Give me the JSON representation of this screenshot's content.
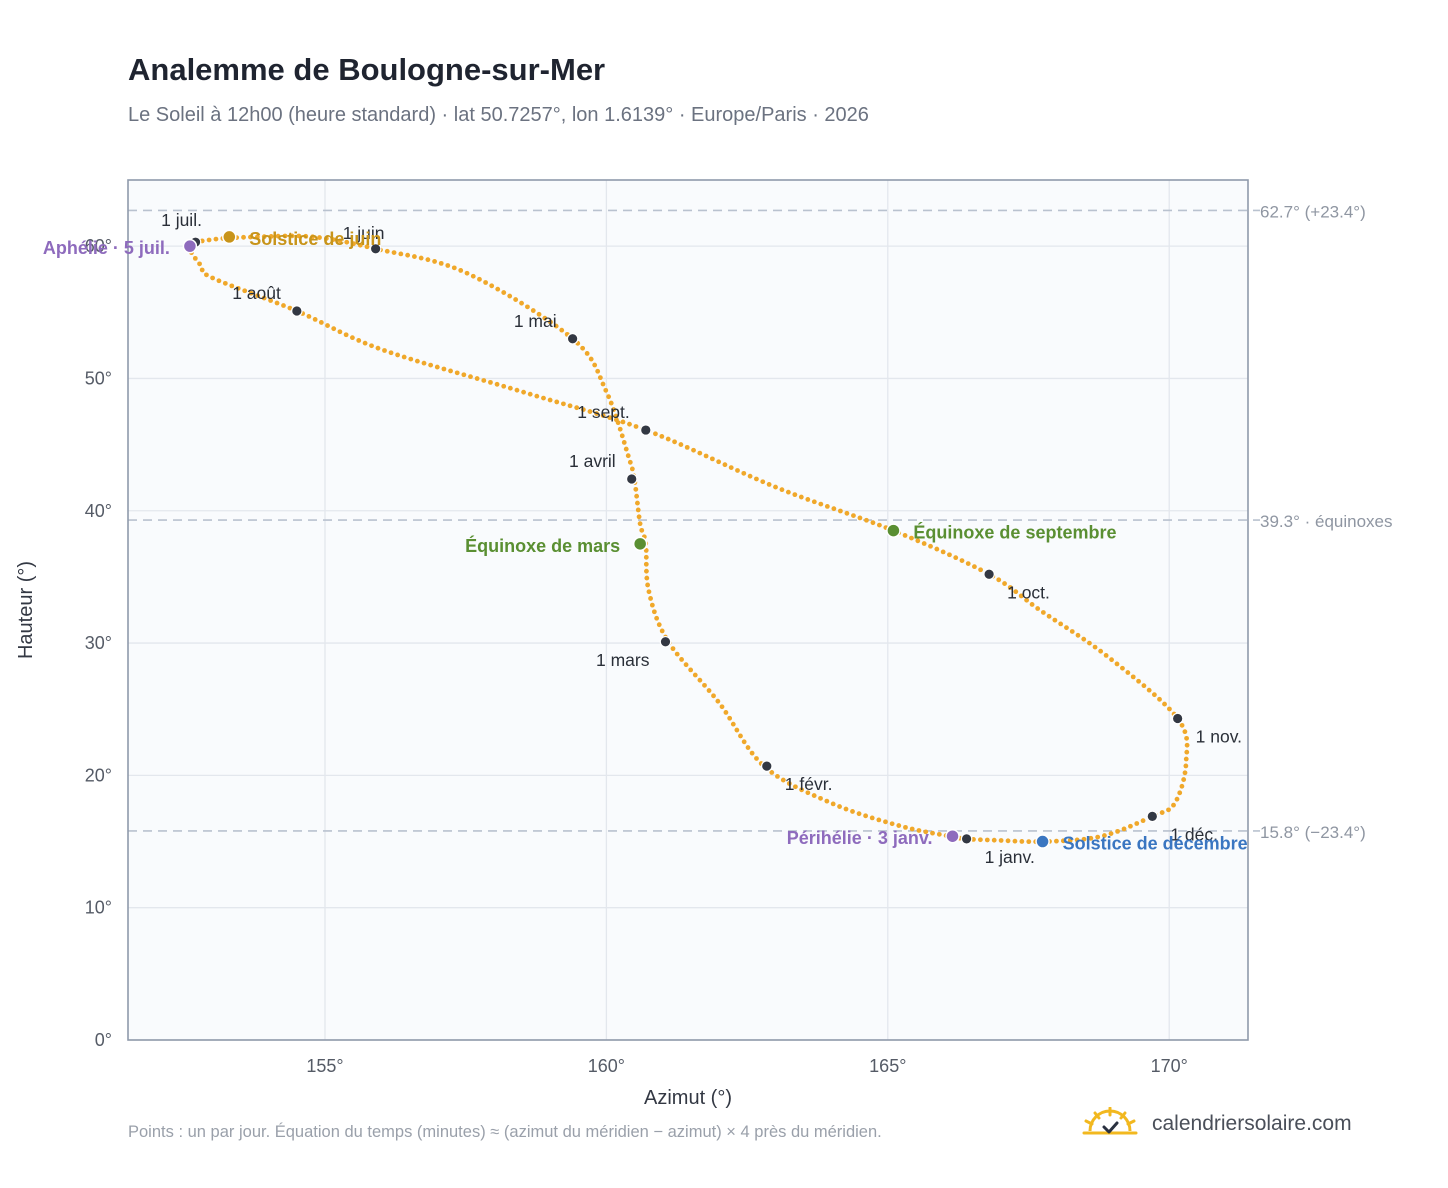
{
  "title": "Analemme de Boulogne-sur-Mer",
  "subtitle": "Le Soleil à 12h00 (heure standard) · lat 50.7257°, lon 1.6139° · Europe/Paris · 2026",
  "footnote": "Points : un par jour. Équation du temps (minutes) ≈ (azimut du méridien − azimut) × 4 près du méridien.",
  "brand": {
    "name": "calendriersolaire.com",
    "icon": "sun-check-icon"
  },
  "chart_data": {
    "type": "scatter",
    "xlabel": "Azimut (°)",
    "ylabel": "Hauteur (°)",
    "xlim": [
      151.5,
      171.4
    ],
    "ylim": [
      0,
      65
    ],
    "xticks": [
      155,
      160,
      165,
      170
    ],
    "xtick_labels": [
      "155°",
      "160°",
      "165°",
      "170°"
    ],
    "yticks": [
      0,
      10,
      20,
      30,
      40,
      50,
      60
    ],
    "ytick_labels": [
      "0°",
      "10°",
      "20°",
      "30°",
      "40°",
      "50°",
      "60°"
    ],
    "grid": true,
    "reference_lines": [
      {
        "y": 62.7,
        "label": "62.7° (+23.4°)"
      },
      {
        "y": 39.3,
        "label": "39.3° · équinoxes"
      },
      {
        "y": 15.8,
        "label": "15.8° (−23.4°)"
      }
    ],
    "daily_path": [
      [
        166.4,
        15.2
      ],
      [
        166.9,
        15.1
      ],
      [
        167.8,
        15.0
      ],
      [
        168.8,
        15.4
      ],
      [
        169.7,
        16.9
      ],
      [
        170.1,
        17.9
      ],
      [
        170.3,
        21.0
      ],
      [
        170.15,
        24.3
      ],
      [
        168.9,
        29.0
      ],
      [
        167.7,
        32.5
      ],
      [
        166.8,
        35.2
      ],
      [
        165.1,
        38.5
      ],
      [
        163.0,
        41.8
      ],
      [
        160.7,
        46.1
      ],
      [
        158.5,
        49.0
      ],
      [
        156.0,
        52.2
      ],
      [
        154.5,
        55.1
      ],
      [
        153.0,
        57.6
      ],
      [
        152.8,
        58.5
      ],
      [
        152.6,
        60.0
      ],
      [
        153.0,
        60.5
      ],
      [
        153.8,
        60.7
      ],
      [
        154.8,
        60.7
      ],
      [
        155.9,
        59.8
      ],
      [
        157.5,
        58.0
      ],
      [
        159.4,
        53.0
      ],
      [
        160.0,
        49.0
      ],
      [
        160.4,
        44.0
      ],
      [
        160.5,
        42.3
      ],
      [
        160.6,
        39.0
      ],
      [
        160.7,
        37.5
      ],
      [
        160.75,
        34.0
      ],
      [
        161.1,
        30.1
      ],
      [
        162.0,
        25.5
      ],
      [
        162.8,
        20.7
      ],
      [
        164.0,
        17.9
      ],
      [
        165.2,
        16.2
      ],
      [
        166.1,
        15.4
      ],
      [
        166.4,
        15.2
      ]
    ],
    "month_markers": [
      {
        "label": "1 janv.",
        "x": 166.4,
        "y": 15.2
      },
      {
        "label": "1 févr.",
        "x": 162.85,
        "y": 20.7
      },
      {
        "label": "1 mars",
        "x": 161.05,
        "y": 30.1
      },
      {
        "label": "1 avril",
        "x": 160.45,
        "y": 42.4
      },
      {
        "label": "1 mai",
        "x": 159.4,
        "y": 53.0
      },
      {
        "label": "1 juin",
        "x": 155.9,
        "y": 59.8
      },
      {
        "label": "1 juil.",
        "x": 152.7,
        "y": 60.3
      },
      {
        "label": "1 août",
        "x": 154.5,
        "y": 55.1
      },
      {
        "label": "1 sept.",
        "x": 160.7,
        "y": 46.1
      },
      {
        "label": "1 oct.",
        "x": 166.8,
        "y": 35.2
      },
      {
        "label": "1 nov.",
        "x": 170.15,
        "y": 24.3
      },
      {
        "label": "1 déc.",
        "x": 169.7,
        "y": 16.9
      }
    ],
    "events": [
      {
        "label": "Solstice de juin",
        "x": 153.3,
        "y": 60.7,
        "color": "#c8941a"
      },
      {
        "label": "Aphélie · 5 juil.",
        "x": 152.6,
        "y": 60.0,
        "color": "#8e6bbd"
      },
      {
        "label": "Équinoxe de mars",
        "x": 160.6,
        "y": 37.5,
        "color": "#5a8f32"
      },
      {
        "label": "Équinoxe de septembre",
        "x": 165.1,
        "y": 38.5,
        "color": "#5a8f32"
      },
      {
        "label": "Périhélie · 3 janv.",
        "x": 166.15,
        "y": 15.4,
        "color": "#8e6bbd"
      },
      {
        "label": "Solstice de décembre",
        "x": 167.75,
        "y": 15.0,
        "color": "#3a76c1"
      }
    ],
    "colors": {
      "path": "#f0a82a",
      "marker": "#333843",
      "plot_bg": "#f9fbfd",
      "frame": "#8f9aab"
    }
  }
}
